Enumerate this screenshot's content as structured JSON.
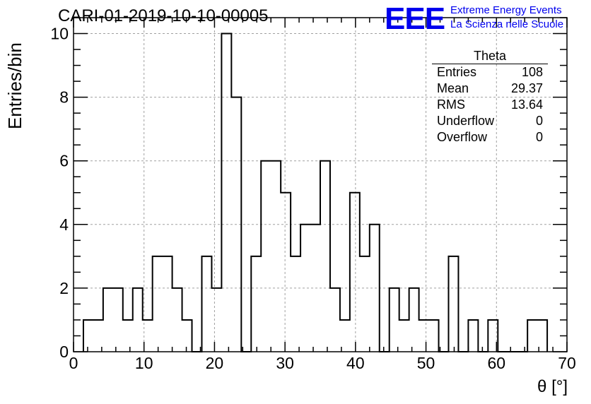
{
  "title": "CARI-01-2019-10-10-00005",
  "logo": {
    "mark": "EEE",
    "line1": "Extreme Energy Events",
    "line2": "La Scienza nelle Scuole",
    "color": "#0000ee"
  },
  "stats": {
    "name": "Theta",
    "rows": [
      {
        "label": "Entries",
        "value": "108"
      },
      {
        "label": "Mean",
        "value": "29.37"
      },
      {
        "label": "RMS",
        "value": "13.64"
      },
      {
        "label": "Underflow",
        "value": "0"
      },
      {
        "label": "Overflow",
        "value": "0"
      }
    ]
  },
  "chart_data": {
    "type": "bar",
    "title": "CARI-01-2019-10-10-00005",
    "xlabel": "θ [°]",
    "ylabel": "Entries/bin",
    "xlim": [
      0,
      70
    ],
    "ylim": [
      0,
      10.5
    ],
    "grid": true,
    "bin_width": 1.4,
    "bin_edges_start": 1.4,
    "values": [
      1,
      1,
      2,
      2,
      1,
      2,
      1,
      3,
      3,
      2,
      1,
      0,
      3,
      2,
      10,
      8,
      0,
      3,
      6,
      6,
      5,
      3,
      4,
      4,
      6,
      2,
      1,
      5,
      3,
      4,
      0,
      2,
      1,
      2,
      1,
      1,
      0,
      3,
      0,
      1,
      0,
      1,
      0,
      0,
      0,
      1,
      1
    ],
    "x_ticks": [
      "0",
      "10",
      "20",
      "30",
      "40",
      "50",
      "60",
      "70"
    ],
    "y_ticks": [
      "0",
      "2",
      "4",
      "6",
      "8",
      "10"
    ],
    "line_color": "#000000",
    "grid_color": "#a0a0a0"
  }
}
